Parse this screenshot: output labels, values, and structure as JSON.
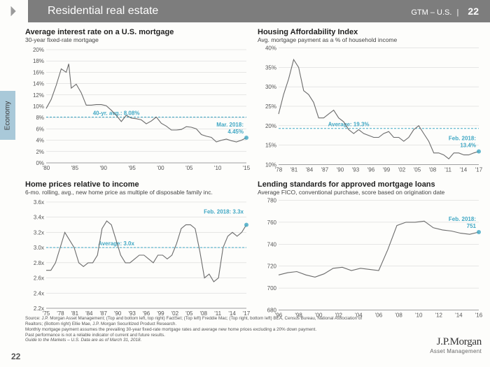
{
  "header": {
    "title": "Residential real estate",
    "right_label": "GTM – U.S.",
    "page_num": "22"
  },
  "side_tab": "Economy",
  "page_num_bl": "22",
  "colors": {
    "header_bg": "#7d7d7d",
    "side_tab_bg": "#a9c9d9",
    "series": "#6b6b6b",
    "refline": "#3fa7c4",
    "callout": "#3fa7c4",
    "grid": "#cfcfcf",
    "axis": "#888888"
  },
  "charts": {
    "c1": {
      "type": "line",
      "title": "Average interest rate on a U.S. mortgage",
      "subtitle": "30-year fixed-rate mortgage",
      "ylim": [
        0,
        20
      ],
      "ytick_step": 2,
      "y_suffix": "%",
      "xticks": [
        "'80",
        "'85",
        "'90",
        "'95",
        "'00",
        "'05",
        "'10",
        "'15"
      ],
      "x_range": [
        1978,
        2018
      ],
      "ref_value": 8.08,
      "ref_label": "40-yr. avg.: 8.08%",
      "callout": {
        "label1": "Mar. 2018:",
        "label2": "4.45%",
        "value": 4.45
      },
      "data": [
        [
          1978,
          9.6
        ],
        [
          1979,
          11.2
        ],
        [
          1980,
          13.7
        ],
        [
          1981,
          16.6
        ],
        [
          1982,
          16.0
        ],
        [
          1982.5,
          17.5
        ],
        [
          1983,
          13.2
        ],
        [
          1984,
          13.9
        ],
        [
          1985,
          12.4
        ],
        [
          1986,
          10.2
        ],
        [
          1987,
          10.2
        ],
        [
          1988,
          10.3
        ],
        [
          1989,
          10.3
        ],
        [
          1990,
          10.1
        ],
        [
          1991,
          9.3
        ],
        [
          1992,
          8.4
        ],
        [
          1993,
          7.3
        ],
        [
          1994,
          8.4
        ],
        [
          1995,
          7.9
        ],
        [
          1996,
          7.8
        ],
        [
          1997,
          7.6
        ],
        [
          1998,
          6.9
        ],
        [
          1999,
          7.4
        ],
        [
          2000,
          8.1
        ],
        [
          2001,
          7.0
        ],
        [
          2002,
          6.5
        ],
        [
          2003,
          5.8
        ],
        [
          2004,
          5.8
        ],
        [
          2005,
          5.9
        ],
        [
          2006,
          6.4
        ],
        [
          2007,
          6.3
        ],
        [
          2008,
          6.0
        ],
        [
          2009,
          5.0
        ],
        [
          2010,
          4.7
        ],
        [
          2011,
          4.5
        ],
        [
          2012,
          3.7
        ],
        [
          2013,
          4.0
        ],
        [
          2014,
          4.2
        ],
        [
          2015,
          3.9
        ],
        [
          2016,
          3.7
        ],
        [
          2017,
          4.0
        ],
        [
          2018,
          4.45
        ]
      ]
    },
    "c2": {
      "type": "line",
      "title": "Housing Affordability Index",
      "subtitle": "Avg. mortgage payment as a % of household income",
      "ylim": [
        10,
        40
      ],
      "ytick_step": 5,
      "y_suffix": "%",
      "xticks": [
        "'78",
        "'81",
        "'84",
        "'87",
        "'90",
        "'93",
        "'96",
        "'99",
        "'02",
        "'05",
        "'08",
        "'11",
        "'14",
        "'17"
      ],
      "x_range": [
        1978,
        2018
      ],
      "ref_value": 19.3,
      "ref_label": "Average: 19.3%",
      "callout": {
        "label1": "Feb. 2018:",
        "label2": "13.4%",
        "value": 13.4
      },
      "data": [
        [
          1978,
          23
        ],
        [
          1979,
          28
        ],
        [
          1980,
          32
        ],
        [
          1981,
          37
        ],
        [
          1982,
          35
        ],
        [
          1983,
          29
        ],
        [
          1984,
          28
        ],
        [
          1985,
          26
        ],
        [
          1986,
          22
        ],
        [
          1987,
          22
        ],
        [
          1988,
          23
        ],
        [
          1989,
          24
        ],
        [
          1990,
          22
        ],
        [
          1991,
          21
        ],
        [
          1992,
          19
        ],
        [
          1993,
          18
        ],
        [
          1994,
          19
        ],
        [
          1995,
          18
        ],
        [
          1996,
          17.5
        ],
        [
          1997,
          17
        ],
        [
          1998,
          17
        ],
        [
          1999,
          18
        ],
        [
          2000,
          18.5
        ],
        [
          2001,
          17
        ],
        [
          2002,
          17
        ],
        [
          2003,
          16
        ],
        [
          2004,
          17
        ],
        [
          2005,
          19
        ],
        [
          2006,
          20
        ],
        [
          2007,
          18
        ],
        [
          2008,
          16
        ],
        [
          2009,
          13
        ],
        [
          2010,
          13
        ],
        [
          2011,
          12.5
        ],
        [
          2012,
          11.5
        ],
        [
          2013,
          13
        ],
        [
          2014,
          13
        ],
        [
          2015,
          12.5
        ],
        [
          2016,
          12.5
        ],
        [
          2017,
          13
        ],
        [
          2018,
          13.4
        ]
      ]
    },
    "c3": {
      "type": "line",
      "title": "Home prices relative to income",
      "subtitle": "6-mo. rolling, avg., new home price as multiple of disposable family inc.",
      "ylim": [
        2.2,
        3.6
      ],
      "ytick_step": 0.2,
      "y_suffix": "x",
      "xticks": [
        "'75",
        "'78",
        "'81",
        "'84",
        "'87",
        "'90",
        "'93",
        "'96",
        "'99",
        "'02",
        "'05",
        "'08",
        "'11",
        "'14",
        "'17"
      ],
      "x_range": [
        1975,
        2018
      ],
      "ref_value": 3.0,
      "ref_label": "Average: 3.0x",
      "callout": {
        "label1": "Feb. 2018: 3.3x",
        "label2": "",
        "value": 3.3
      },
      "data": [
        [
          1975,
          2.7
        ],
        [
          1976,
          2.7
        ],
        [
          1977,
          2.8
        ],
        [
          1978,
          3.0
        ],
        [
          1979,
          3.2
        ],
        [
          1980,
          3.1
        ],
        [
          1981,
          3.0
        ],
        [
          1982,
          2.8
        ],
        [
          1983,
          2.75
        ],
        [
          1984,
          2.8
        ],
        [
          1985,
          2.8
        ],
        [
          1986,
          2.9
        ],
        [
          1987,
          3.25
        ],
        [
          1988,
          3.35
        ],
        [
          1989,
          3.3
        ],
        [
          1990,
          3.1
        ],
        [
          1991,
          2.9
        ],
        [
          1992,
          2.8
        ],
        [
          1993,
          2.8
        ],
        [
          1994,
          2.85
        ],
        [
          1995,
          2.9
        ],
        [
          1996,
          2.9
        ],
        [
          1997,
          2.85
        ],
        [
          1998,
          2.8
        ],
        [
          1999,
          2.9
        ],
        [
          2000,
          2.9
        ],
        [
          2001,
          2.85
        ],
        [
          2002,
          2.9
        ],
        [
          2003,
          3.05
        ],
        [
          2004,
          3.25
        ],
        [
          2005,
          3.3
        ],
        [
          2006,
          3.3
        ],
        [
          2007,
          3.25
        ],
        [
          2008,
          2.95
        ],
        [
          2009,
          2.6
        ],
        [
          2010,
          2.65
        ],
        [
          2011,
          2.55
        ],
        [
          2012,
          2.6
        ],
        [
          2013,
          3.0
        ],
        [
          2014,
          3.15
        ],
        [
          2015,
          3.2
        ],
        [
          2016,
          3.15
        ],
        [
          2017,
          3.2
        ],
        [
          2018,
          3.3
        ]
      ]
    },
    "c4": {
      "type": "line",
      "title": "Lending standards for approved mortgage loans",
      "subtitle": "Average FICO, conventional purchase, score based on origination date",
      "ylim": [
        680,
        780
      ],
      "ytick_step": 20,
      "y_suffix": "",
      "xticks": [
        "'96",
        "'98",
        "'00",
        "'02",
        "'04",
        "'06",
        "'08",
        "'10",
        "'12",
        "'14",
        "'16"
      ],
      "x_range": [
        1996,
        2018
      ],
      "ref_value": null,
      "callout": {
        "label1": "Feb. 2018:",
        "label2": "751",
        "value": 751
      },
      "data": [
        [
          1996,
          712
        ],
        [
          1997,
          714
        ],
        [
          1998,
          715
        ],
        [
          1999,
          712
        ],
        [
          2000,
          710
        ],
        [
          2001,
          713
        ],
        [
          2002,
          718
        ],
        [
          2003,
          719
        ],
        [
          2004,
          716
        ],
        [
          2005,
          718
        ],
        [
          2006,
          717
        ],
        [
          2007,
          716
        ],
        [
          2008,
          735
        ],
        [
          2009,
          757
        ],
        [
          2010,
          760
        ],
        [
          2011,
          760
        ],
        [
          2012,
          761
        ],
        [
          2013,
          755
        ],
        [
          2014,
          753
        ],
        [
          2015,
          752
        ],
        [
          2016,
          750
        ],
        [
          2017,
          749
        ],
        [
          2018,
          751
        ]
      ]
    }
  },
  "footnotes": [
    "Source: J.P. Morgan Asset Management; (Top and bottom left, top right) FactSet; (Top left) Freddie Mac; (Top right, bottom left) BEA, Census Bureau, National Association of Realtors; (Bottom right) Ellie Mae, J.P. Morgan Securitized Product Research.",
    "Monthly mortgage payment assumes the prevailing 30-year fixed-rate mortgage rates and average new home prices excluding a 20% down payment.",
    "Past performance is not a reliable indicator of current and future results.",
    "Guide to the Markets – U.S. Data are as of March 31, 2018."
  ],
  "logo": {
    "line1": "J.P.Morgan",
    "line2": "Asset Management"
  }
}
